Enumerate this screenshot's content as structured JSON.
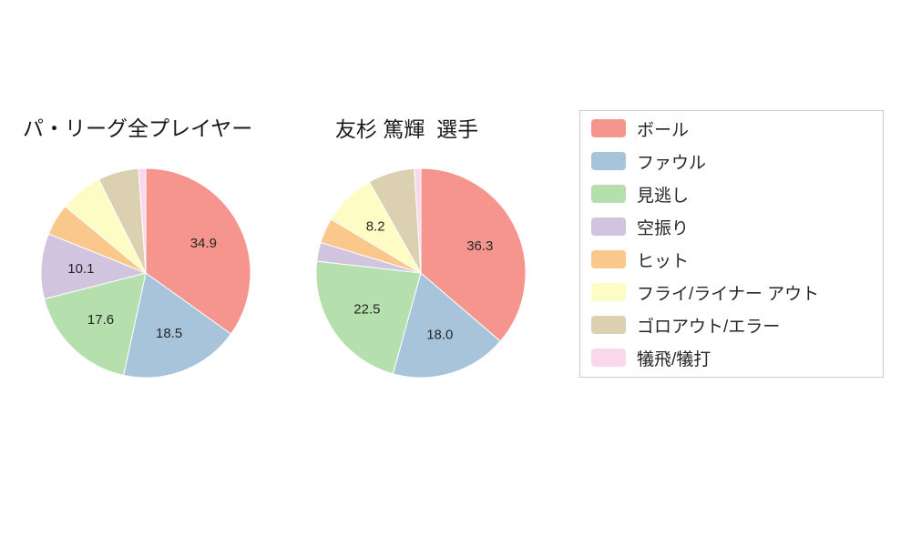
{
  "page": {
    "background": "#ffffff"
  },
  "chart_data": [
    {
      "type": "pie",
      "name": "pa-league-all-players",
      "title": "パ・リーグ全プレイヤー",
      "units": "percent",
      "start_angle_deg": 0,
      "direction": "clockwise",
      "slices": [
        {
          "key": "ball",
          "category": "ボール",
          "value": 34.9,
          "label": "34.9",
          "color": "#f6958d"
        },
        {
          "key": "foul",
          "category": "ファウル",
          "value": 18.5,
          "label": "18.5",
          "color": "#a8c4db"
        },
        {
          "key": "called-strike",
          "category": "見逃し",
          "value": 17.6,
          "label": "17.6",
          "color": "#b5dfac"
        },
        {
          "key": "swinging-strike",
          "category": "空振り",
          "value": 10.1,
          "label": "10.1",
          "color": "#d1c4df"
        },
        {
          "key": "hit",
          "category": "ヒット",
          "value": 4.9,
          "label": null,
          "color": "#fac88a"
        },
        {
          "key": "fly-liner-out",
          "category": "フライ/ライナー アウト",
          "value": 6.6,
          "label": null,
          "color": "#fdfcc5"
        },
        {
          "key": "ground-out-error",
          "category": "ゴロアウト/エラー",
          "value": 6.3,
          "label": null,
          "color": "#dbd1b1"
        },
        {
          "key": "sac-fly-bunt",
          "category": "犠飛/犠打",
          "value": 1.1,
          "label": null,
          "color": "#fad7eb"
        }
      ]
    },
    {
      "type": "pie",
      "name": "tomosugi-atsuki",
      "title": "友杉 篤輝  選手",
      "units": "percent",
      "start_angle_deg": 0,
      "direction": "clockwise",
      "slices": [
        {
          "key": "ball",
          "category": "ボール",
          "value": 36.3,
          "label": "36.3",
          "color": "#f6958d"
        },
        {
          "key": "foul",
          "category": "ファウル",
          "value": 18.0,
          "label": "18.0",
          "color": "#a8c4db"
        },
        {
          "key": "called-strike",
          "category": "見逃し",
          "value": 22.5,
          "label": "22.5",
          "color": "#b5dfac"
        },
        {
          "key": "swinging-strike",
          "category": "空振り",
          "value": 2.9,
          "label": null,
          "color": "#d1c4df"
        },
        {
          "key": "hit",
          "category": "ヒット",
          "value": 3.9,
          "label": null,
          "color": "#fac88a"
        },
        {
          "key": "fly-liner-out",
          "category": "フライ/ライナー アウト",
          "value": 8.2,
          "label": "8.2",
          "color": "#fdfcc5"
        },
        {
          "key": "ground-out-error",
          "category": "ゴロアウト/エラー",
          "value": 7.2,
          "label": null,
          "color": "#dbd1b1"
        },
        {
          "key": "sac-fly-bunt",
          "category": "犠飛/犠打",
          "value": 1.0,
          "label": null,
          "color": "#fad7eb"
        }
      ]
    }
  ],
  "legend": {
    "items": [
      {
        "key": "ball",
        "label": "ボール",
        "color": "#f6958d"
      },
      {
        "key": "foul",
        "label": "ファウル",
        "color": "#a8c4db"
      },
      {
        "key": "called-strike",
        "label": "見逃し",
        "color": "#b5dfac"
      },
      {
        "key": "swinging-strike",
        "label": "空振り",
        "color": "#d1c4df"
      },
      {
        "key": "hit",
        "label": "ヒット",
        "color": "#fac88a"
      },
      {
        "key": "fly-liner-out",
        "label": "フライ/ライナー アウト",
        "color": "#fdfcc5"
      },
      {
        "key": "ground-out-error",
        "label": "ゴロアウト/エラー",
        "color": "#dbd1b1"
      },
      {
        "key": "sac-fly-bunt",
        "label": "犠飛/犠打",
        "color": "#fad7eb"
      }
    ]
  }
}
